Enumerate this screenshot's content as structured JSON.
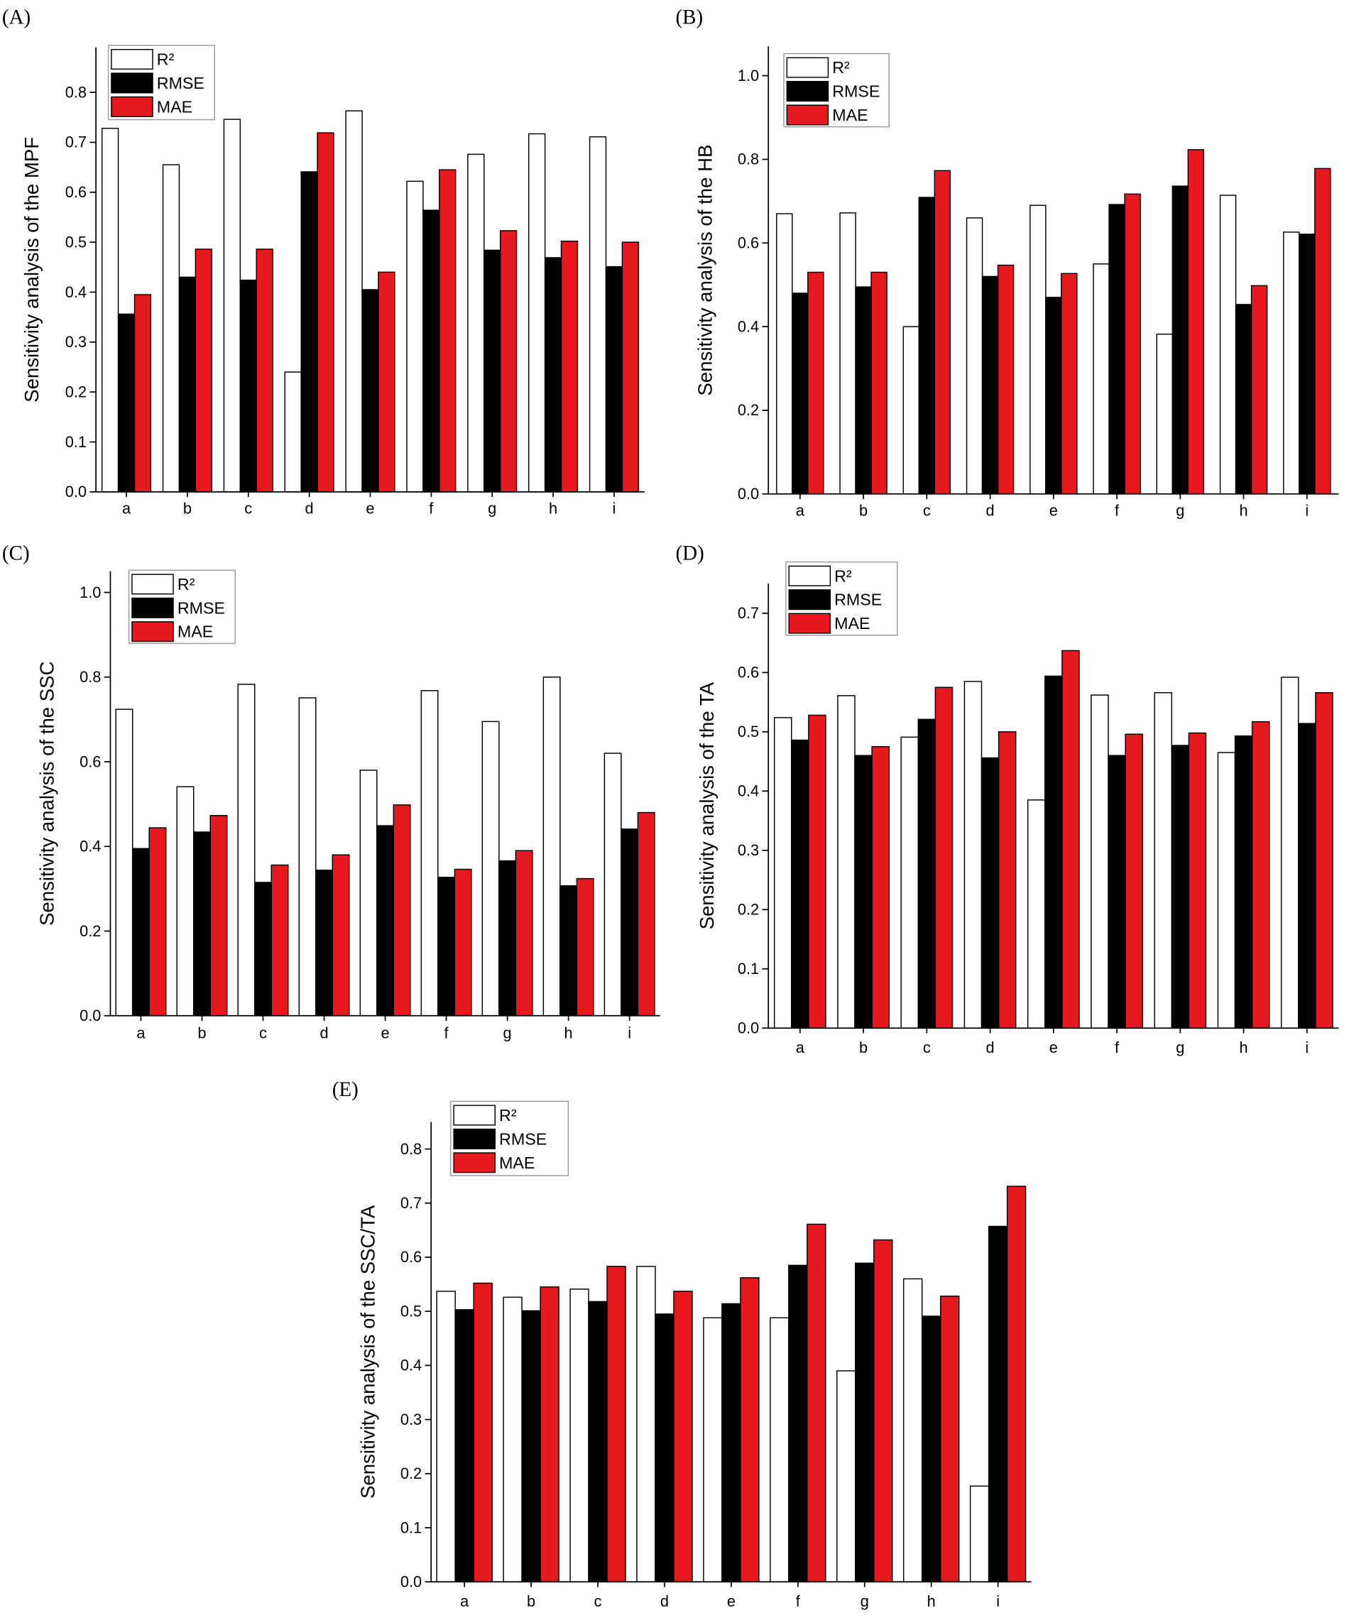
{
  "colors": {
    "r2_fill": "#ffffff",
    "rmse_fill": "#000000",
    "mae_fill": "#e8191e",
    "outline": "#000000"
  },
  "chart_data": [
    {
      "type": "bar",
      "panel": "(A)",
      "ylabel": "Sensitivity analysis of the MPF",
      "categories": [
        "a",
        "b",
        "c",
        "d",
        "e",
        "f",
        "g",
        "h",
        "i"
      ],
      "ylim": [
        0,
        0.89
      ],
      "yticks": [
        "0.0",
        "0.1",
        "0.2",
        "0.3",
        "0.4",
        "0.5",
        "0.6",
        "0.7",
        "0.8"
      ],
      "grid": false,
      "legend": "top-left",
      "series": [
        {
          "name": "R²",
          "color": "#ffffff",
          "values": [
            0.728,
            0.655,
            0.746,
            0.24,
            0.763,
            0.622,
            0.676,
            0.717,
            0.711
          ]
        },
        {
          "name": "RMSE",
          "color": "#000000",
          "values": [
            0.356,
            0.43,
            0.424,
            0.641,
            0.405,
            0.564,
            0.484,
            0.469,
            0.451
          ]
        },
        {
          "name": "MAE",
          "color": "#e8191e",
          "values": [
            0.395,
            0.486,
            0.486,
            0.719,
            0.44,
            0.645,
            0.523,
            0.502,
            0.5
          ]
        }
      ]
    },
    {
      "type": "bar",
      "panel": "(B)",
      "ylabel": "Sensitivity analysis of the HB",
      "categories": [
        "a",
        "b",
        "c",
        "d",
        "e",
        "f",
        "g",
        "h",
        "i"
      ],
      "ylim": [
        0,
        1.07
      ],
      "yticks": [
        "0.0",
        "0.2",
        "0.4",
        "0.6",
        "0.8",
        "1.0"
      ],
      "grid": false,
      "legend": "top-left",
      "series": [
        {
          "name": "R²",
          "color": "#ffffff",
          "values": [
            0.67,
            0.672,
            0.4,
            0.66,
            0.69,
            0.55,
            0.382,
            0.714,
            0.626
          ]
        },
        {
          "name": "RMSE",
          "color": "#000000",
          "values": [
            0.48,
            0.495,
            0.709,
            0.52,
            0.47,
            0.692,
            0.736,
            0.453,
            0.621
          ]
        },
        {
          "name": "MAE",
          "color": "#e8191e",
          "values": [
            0.53,
            0.53,
            0.773,
            0.547,
            0.527,
            0.717,
            0.823,
            0.498,
            0.778
          ]
        }
      ]
    },
    {
      "type": "bar",
      "panel": "(C)",
      "ylabel": "Sensitivity analysis of the SSC",
      "categories": [
        "a",
        "b",
        "c",
        "d",
        "e",
        "f",
        "g",
        "h",
        "i"
      ],
      "ylim": [
        0,
        1.05
      ],
      "yticks": [
        "0.0",
        "0.2",
        "0.4",
        "0.6",
        "0.8",
        "1.0"
      ],
      "grid": false,
      "legend": "top-left",
      "series": [
        {
          "name": "R²",
          "color": "#ffffff",
          "values": [
            0.724,
            0.541,
            0.783,
            0.751,
            0.58,
            0.768,
            0.695,
            0.8,
            0.62
          ]
        },
        {
          "name": "RMSE",
          "color": "#000000",
          "values": [
            0.395,
            0.434,
            0.315,
            0.344,
            0.449,
            0.327,
            0.366,
            0.307,
            0.441
          ]
        },
        {
          "name": "MAE",
          "color": "#e8191e",
          "values": [
            0.444,
            0.473,
            0.356,
            0.38,
            0.498,
            0.346,
            0.39,
            0.324,
            0.48
          ]
        }
      ]
    },
    {
      "type": "bar",
      "panel": "(D)",
      "ylabel": "Sensitivity analysis of the TA",
      "categories": [
        "a",
        "b",
        "c",
        "d",
        "e",
        "f",
        "g",
        "h",
        "i"
      ],
      "ylim": [
        0,
        0.75
      ],
      "yticks": [
        "0.0",
        "0.1",
        "0.2",
        "0.3",
        "0.4",
        "0.5",
        "0.6",
        "0.7"
      ],
      "grid": false,
      "legend": "top-left",
      "series": [
        {
          "name": "R²",
          "color": "#ffffff",
          "values": [
            0.524,
            0.561,
            0.491,
            0.585,
            0.385,
            0.562,
            0.566,
            0.465,
            0.592
          ]
        },
        {
          "name": "RMSE",
          "color": "#000000",
          "values": [
            0.486,
            0.46,
            0.521,
            0.456,
            0.594,
            0.46,
            0.477,
            0.493,
            0.514
          ]
        },
        {
          "name": "MAE",
          "color": "#e8191e",
          "values": [
            0.528,
            0.475,
            0.575,
            0.5,
            0.637,
            0.496,
            0.498,
            0.517,
            0.566
          ]
        }
      ]
    },
    {
      "type": "bar",
      "panel": "(E)",
      "ylabel": "Sensitivity analysis of the SSC/TA",
      "categories": [
        "a",
        "b",
        "c",
        "d",
        "e",
        "f",
        "g",
        "h",
        "i"
      ],
      "ylim": [
        0,
        0.85
      ],
      "yticks": [
        "0.0",
        "0.1",
        "0.2",
        "0.3",
        "0.4",
        "0.5",
        "0.6",
        "0.7",
        "0.8"
      ],
      "grid": false,
      "legend": "top-left",
      "series": [
        {
          "name": "R²",
          "color": "#ffffff",
          "values": [
            0.537,
            0.526,
            0.541,
            0.583,
            0.488,
            0.488,
            0.39,
            0.56,
            0.177
          ]
        },
        {
          "name": "RMSE",
          "color": "#000000",
          "values": [
            0.503,
            0.501,
            0.518,
            0.495,
            0.514,
            0.585,
            0.589,
            0.491,
            0.657
          ]
        },
        {
          "name": "MAE",
          "color": "#e8191e",
          "values": [
            0.552,
            0.545,
            0.583,
            0.537,
            0.562,
            0.661,
            0.632,
            0.528,
            0.731
          ]
        }
      ]
    }
  ]
}
